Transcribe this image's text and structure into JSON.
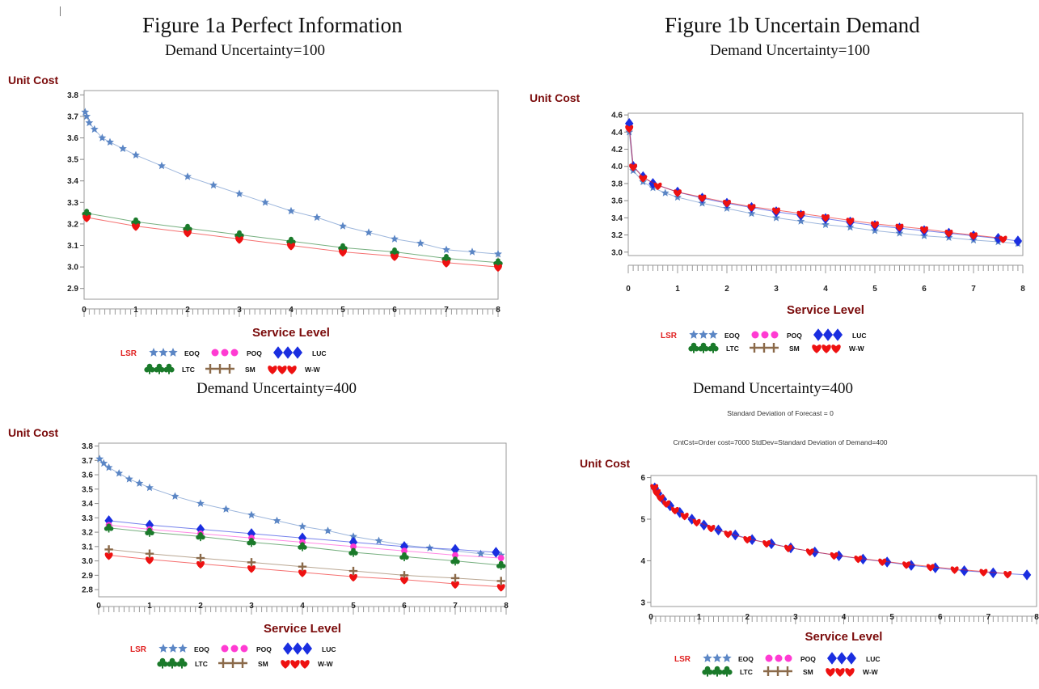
{
  "figures": {
    "fig1a_title": "Figure 1a Perfect Information",
    "fig1b_title": "Figure 1b Uncertain Demand",
    "sub_top_left": "Demand Uncertainty=100",
    "sub_top_right": "Demand Uncertainty=100",
    "sub_bottom_left": "Demand Uncertainty=400",
    "sub_bottom_right": "Demand Uncertainty=400"
  },
  "legend_labels": [
    "LSR",
    "EOQ",
    "POQ",
    "LUC",
    "LTC",
    "SM",
    "W-W"
  ],
  "colors": {
    "axis_label": "#7a0a0a",
    "LSR": "#e02020",
    "EOQ": "#5b86c5",
    "POQ": "#ff3bd2",
    "LUC": "#1a2ee0",
    "LTC": "#1a7a2a",
    "SM": "#8b6a4a",
    "W-W": "#ee1111"
  },
  "chart_data": [
    {
      "type": "line",
      "panel": "top-left",
      "title": "",
      "xlabel": "Service Level",
      "ylabel": "Unit Cost",
      "xlim": [
        0,
        8
      ],
      "ylim": [
        2.85,
        3.82
      ],
      "yticks": [
        3.8,
        3.7,
        3.6,
        3.5,
        3.4,
        3.3,
        3.2,
        3.1,
        3.0,
        2.9
      ],
      "ytick_labels": [
        "3.8",
        "3.7",
        "3.6",
        "3.5",
        "3.4",
        "3.3",
        "3.2",
        "3.1",
        "3.0",
        "2.9"
      ],
      "xticks": [
        0,
        1,
        2,
        3,
        4,
        5,
        6,
        7,
        8
      ],
      "xtick_labels": [
        "0",
        "1",
        "2",
        "3",
        "4",
        "5",
        "6",
        "7",
        "8"
      ],
      "series": [
        {
          "name": "EOQ",
          "marker": "star",
          "x": [
            0.02,
            0.05,
            0.1,
            0.2,
            0.35,
            0.5,
            0.75,
            1.0,
            1.5,
            2.0,
            2.5,
            3.0,
            3.5,
            4.0,
            4.5,
            5.0,
            5.5,
            6.0,
            6.5,
            7.0,
            7.5,
            8.0
          ],
          "values": [
            3.72,
            3.7,
            3.67,
            3.64,
            3.6,
            3.58,
            3.55,
            3.52,
            3.47,
            3.42,
            3.38,
            3.34,
            3.3,
            3.26,
            3.23,
            3.19,
            3.16,
            3.13,
            3.11,
            3.08,
            3.07,
            3.06
          ]
        },
        {
          "name": "LTC",
          "marker": "club",
          "x": [
            0.05,
            1,
            2,
            3,
            4,
            5,
            6,
            7,
            8
          ],
          "values": [
            3.25,
            3.21,
            3.18,
            3.15,
            3.12,
            3.09,
            3.07,
            3.04,
            3.02
          ]
        },
        {
          "name": "W-W",
          "marker": "heart",
          "x": [
            0.05,
            1,
            2,
            3,
            4,
            5,
            6,
            7,
            8
          ],
          "values": [
            3.23,
            3.19,
            3.16,
            3.13,
            3.1,
            3.07,
            3.05,
            3.02,
            3.0
          ]
        }
      ]
    },
    {
      "type": "line",
      "panel": "top-right",
      "title": "",
      "xlabel": "Service Level",
      "ylabel": "Unit Cost",
      "xlim": [
        0,
        8
      ],
      "ylim": [
        2.96,
        4.62
      ],
      "yticks": [
        4.6,
        4.4,
        4.2,
        4.0,
        3.8,
        3.6,
        3.4,
        3.2,
        3.0
      ],
      "ytick_labels": [
        "4.6",
        "4.4",
        "4.2",
        "4.0",
        "3.8",
        "3.6",
        "3.4",
        "3.2",
        "3.0"
      ],
      "xticks": [
        0,
        1,
        2,
        3,
        4,
        5,
        6,
        7,
        8
      ],
      "xtick_labels": [
        "0",
        "1",
        "2",
        "3",
        "4",
        "5",
        "6",
        "7",
        "8"
      ],
      "series": [
        {
          "name": "EOQ",
          "marker": "star",
          "x": [
            0.02,
            0.1,
            0.3,
            0.5,
            0.75,
            1.0,
            1.5,
            2.0,
            2.5,
            3.0,
            3.5,
            4.0,
            4.5,
            5.0,
            5.5,
            6.0,
            6.5,
            7.0,
            7.5,
            7.9
          ],
          "values": [
            4.4,
            3.95,
            3.82,
            3.75,
            3.69,
            3.64,
            3.57,
            3.51,
            3.45,
            3.4,
            3.36,
            3.32,
            3.29,
            3.25,
            3.22,
            3.19,
            3.17,
            3.14,
            3.12,
            3.1
          ]
        },
        {
          "name": "LUC",
          "marker": "diamond",
          "x": [
            0.02,
            0.1,
            0.3,
            0.5,
            1.0,
            1.5,
            2.0,
            2.5,
            3.0,
            3.5,
            4.0,
            4.5,
            5.0,
            5.5,
            6.0,
            6.5,
            7.0,
            7.5,
            7.9
          ],
          "values": [
            4.5,
            4.0,
            3.88,
            3.8,
            3.7,
            3.63,
            3.57,
            3.52,
            3.47,
            3.43,
            3.39,
            3.35,
            3.31,
            3.28,
            3.25,
            3.22,
            3.19,
            3.16,
            3.13
          ]
        },
        {
          "name": "W-W",
          "marker": "heart",
          "x": [
            0.02,
            0.1,
            0.3,
            0.6,
            1.0,
            1.5,
            2.0,
            2.5,
            3.0,
            3.5,
            4.0,
            4.5,
            5.0,
            5.5,
            6.0,
            6.5,
            7.0,
            7.6
          ],
          "values": [
            4.45,
            4.0,
            3.87,
            3.78,
            3.7,
            3.64,
            3.58,
            3.53,
            3.49,
            3.45,
            3.41,
            3.37,
            3.33,
            3.3,
            3.27,
            3.23,
            3.2,
            3.16
          ]
        }
      ]
    },
    {
      "type": "line",
      "panel": "bottom-left",
      "title": "",
      "xlabel": "Service Level",
      "ylabel": "Unit Cost",
      "xlim": [
        0,
        8
      ],
      "ylim": [
        2.75,
        3.82
      ],
      "yticks": [
        3.8,
        3.7,
        3.6,
        3.5,
        3.4,
        3.3,
        3.2,
        3.1,
        3.0,
        2.9,
        2.8
      ],
      "ytick_labels": [
        "3.8",
        "3.7",
        "3.6",
        "3.5",
        "3.4",
        "3.3",
        "3.2",
        "3.1",
        "3.0",
        "2.9",
        "2.8"
      ],
      "xticks": [
        0,
        1,
        2,
        3,
        4,
        5,
        6,
        7,
        8
      ],
      "xtick_labels": [
        "0",
        "1",
        "2",
        "3",
        "4",
        "5",
        "6",
        "7",
        "8"
      ],
      "series": [
        {
          "name": "EOQ",
          "marker": "star",
          "x": [
            0.02,
            0.1,
            0.2,
            0.4,
            0.6,
            0.8,
            1.0,
            1.5,
            2.0,
            2.5,
            3.0,
            3.5,
            4.0,
            4.5,
            5.0,
            5.5,
            6.0,
            6.5,
            7.0,
            7.5,
            7.9
          ],
          "values": [
            3.71,
            3.68,
            3.65,
            3.61,
            3.57,
            3.54,
            3.51,
            3.45,
            3.4,
            3.36,
            3.32,
            3.28,
            3.24,
            3.21,
            3.17,
            3.14,
            3.11,
            3.09,
            3.07,
            3.05,
            3.04
          ]
        },
        {
          "name": "LUC",
          "marker": "diamond",
          "x": [
            0.2,
            1,
            2,
            3,
            4,
            5,
            6,
            7,
            7.8
          ],
          "values": [
            3.28,
            3.25,
            3.22,
            3.19,
            3.16,
            3.13,
            3.1,
            3.08,
            3.06
          ]
        },
        {
          "name": "POQ",
          "marker": "circle",
          "x": [
            0.2,
            1,
            2,
            3,
            4,
            5,
            6,
            7,
            7.9
          ],
          "values": [
            3.25,
            3.22,
            3.19,
            3.16,
            3.13,
            3.1,
            3.07,
            3.04,
            3.02
          ]
        },
        {
          "name": "LTC",
          "marker": "club",
          "x": [
            0.2,
            1,
            2,
            3,
            4,
            5,
            6,
            7,
            7.9
          ],
          "values": [
            3.23,
            3.2,
            3.17,
            3.13,
            3.1,
            3.06,
            3.03,
            3.0,
            2.97
          ]
        },
        {
          "name": "SM",
          "marker": "plus",
          "x": [
            0.2,
            1,
            2,
            3,
            4,
            5,
            6,
            7,
            7.9
          ],
          "values": [
            3.08,
            3.05,
            3.02,
            2.99,
            2.96,
            2.93,
            2.9,
            2.88,
            2.86
          ]
        },
        {
          "name": "W-W",
          "marker": "heart",
          "x": [
            0.2,
            1,
            2,
            3,
            4,
            5,
            6,
            7,
            7.9
          ],
          "values": [
            3.04,
            3.01,
            2.98,
            2.95,
            2.92,
            2.89,
            2.87,
            2.84,
            2.82
          ]
        }
      ]
    },
    {
      "type": "line",
      "panel": "bottom-right",
      "title": "CntCst=Order cost=7000 StdDev=Standard Deviation of Demand=400",
      "subtitle": "Standard Deviation of Forecast = 0",
      "xlabel": "Service Level",
      "ylabel": "Unit Cost",
      "xlim": [
        0,
        8
      ],
      "ylim": [
        2.9,
        6.05
      ],
      "yticks": [
        6,
        5,
        4,
        3
      ],
      "ytick_labels": [
        "6",
        "5",
        "4",
        "3"
      ],
      "xticks": [
        0,
        1,
        2,
        3,
        4,
        5,
        6,
        7,
        8
      ],
      "xtick_labels": [
        "0",
        "1",
        "2",
        "3",
        "4",
        "5",
        "6",
        "7",
        "8"
      ],
      "series": [
        {
          "name": "LUC",
          "marker": "diamond",
          "x": [
            0.08,
            0.15,
            0.25,
            0.4,
            0.6,
            0.85,
            1.1,
            1.4,
            1.75,
            2.1,
            2.5,
            2.9,
            3.4,
            3.9,
            4.4,
            4.9,
            5.4,
            5.9,
            6.5,
            7.1,
            7.8
          ],
          "values": [
            5.75,
            5.62,
            5.48,
            5.32,
            5.16,
            5.0,
            4.86,
            4.74,
            4.62,
            4.51,
            4.41,
            4.31,
            4.21,
            4.12,
            4.04,
            3.97,
            3.89,
            3.83,
            3.76,
            3.71,
            3.66
          ]
        },
        {
          "name": "W-W",
          "marker": "heart",
          "x": [
            0.07,
            0.12,
            0.2,
            0.32,
            0.5,
            0.7,
            0.95,
            1.25,
            1.6,
            2.0,
            2.4,
            2.85,
            3.3,
            3.8,
            4.3,
            4.8,
            5.3,
            5.8,
            6.3,
            6.9,
            7.4
          ],
          "values": [
            5.78,
            5.66,
            5.53,
            5.39,
            5.23,
            5.09,
            4.94,
            4.8,
            4.66,
            4.53,
            4.43,
            4.32,
            4.23,
            4.14,
            4.06,
            3.99,
            3.92,
            3.86,
            3.8,
            3.74,
            3.69
          ]
        }
      ]
    }
  ]
}
